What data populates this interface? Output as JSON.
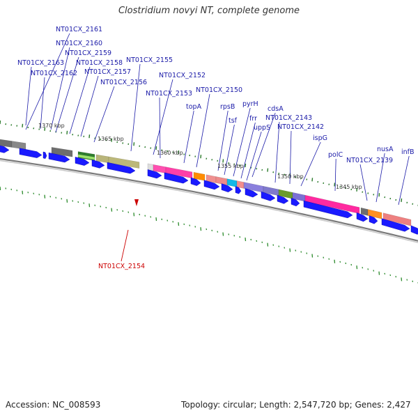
{
  "title": "Clostridium novyi NT, complete genome",
  "footer": {
    "accession": "Accession: NC_008593",
    "summary": "Topology: circular; Length: 2,547,720 bp; Genes: 2,427"
  },
  "colors": {
    "forward_cds": "#1a1aff",
    "label": "#1a1aa8",
    "highlight": "#cc0000",
    "backbone": "#7a7a7a",
    "gc_skew": "#2a8a2a"
  },
  "scale_labels": [
    "1370 kbp",
    "1365 kbp",
    "1360 kbp",
    "1355 kbp",
    "1350 kbp",
    "1345 kbp"
  ],
  "genes": [
    "NT01CX_2161",
    "NT01CX_2160",
    "NT01CX_2159",
    "NT01CX_2163",
    "NT01CX_2158",
    "NT01CX_2155",
    "NT01CX_2162",
    "NT01CX_2157",
    "NT01CX_2152",
    "NT01CX_2156",
    "NT01CX_2153",
    "NT01CX_2150",
    "topA",
    "rpsB",
    "pyrH",
    "cdsA",
    "tsf",
    "frr",
    "uppS",
    "NT01CX_2143",
    "NT01CX_2142",
    "ispG",
    "polC",
    "nusA",
    "infB",
    "NT01CX_2139"
  ],
  "highlighted_gene": "NT01CX_2154"
}
